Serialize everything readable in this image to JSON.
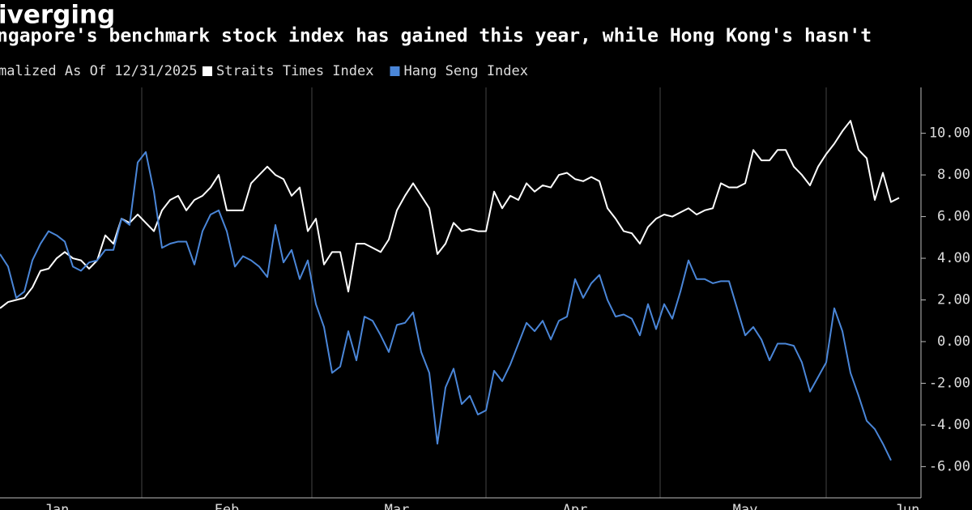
{
  "chart_data": {
    "type": "line",
    "title": "iverging",
    "subtitle": "ngapore's benchmark stock index has gained this year, while Hong Kong's hasn't",
    "legend_title": "malized As Of 12/31/2025",
    "categories": [
      null,
      null,
      null,
      null,
      null,
      null,
      null,
      "Jan",
      null,
      null,
      null,
      null,
      null,
      null,
      null,
      null,
      null,
      null,
      null,
      null,
      null,
      null,
      null,
      null,
      null,
      null,
      null,
      null,
      "Feb",
      null,
      null,
      null,
      null,
      null,
      null,
      null,
      null,
      null,
      null,
      null,
      null,
      null,
      null,
      null,
      null,
      null,
      null,
      null,
      null,
      "Mar",
      null,
      null,
      null,
      null,
      null,
      null,
      null,
      null,
      null,
      null,
      null,
      null,
      null,
      null,
      null,
      null,
      null,
      null,
      null,
      null,
      null,
      "Apr",
      null,
      null,
      null,
      null,
      null,
      null,
      null,
      null,
      null,
      null,
      null,
      null,
      null,
      null,
      null,
      null,
      null,
      null,
      null,
      null,
      "May",
      null,
      null,
      null,
      null,
      null,
      null,
      null,
      null,
      null,
      null,
      null,
      null,
      null,
      null,
      null,
      null,
      null,
      null,
      null,
      "Jun"
    ],
    "series": [
      {
        "name": "Straits Times Index",
        "color": "#ffffff",
        "values": [
          1.6,
          1.9,
          2.0,
          2.1,
          2.6,
          3.4,
          3.5,
          4.0,
          4.3,
          4.0,
          3.9,
          3.5,
          3.9,
          5.1,
          4.7,
          5.9,
          5.7,
          6.1,
          5.7,
          5.3,
          6.3,
          6.8,
          7.0,
          6.3,
          6.8,
          7.0,
          7.4,
          8.0,
          6.3,
          6.3,
          6.3,
          7.6,
          8.0,
          8.4,
          8.0,
          7.8,
          7.0,
          7.4,
          5.3,
          5.9,
          3.7,
          4.3,
          4.3,
          2.4,
          4.7,
          4.7,
          4.5,
          4.3,
          4.9,
          6.3,
          7.0,
          7.6,
          7.0,
          6.4,
          4.2,
          4.7,
          5.7,
          5.3,
          5.4,
          5.3,
          5.3,
          7.2,
          6.4,
          7.0,
          6.8,
          7.6,
          7.2,
          7.5,
          7.4,
          8.0,
          8.1,
          7.8,
          7.7,
          7.9,
          7.7,
          6.4,
          5.9,
          5.3,
          5.2,
          4.7,
          5.5,
          5.9,
          6.1,
          6.0,
          6.2,
          6.4,
          6.1,
          6.3,
          6.4,
          7.6,
          7.4,
          7.4,
          7.6,
          9.2,
          8.7,
          8.7,
          9.2,
          9.2,
          8.4,
          8.0,
          7.5,
          8.4,
          9.0,
          9.5,
          10.1,
          10.6,
          9.2,
          8.8,
          6.8,
          8.1,
          6.7,
          6.9,
          null
        ]
      },
      {
        "name": "Hang Seng Index",
        "color": "#4a86d8",
        "values": [
          4.2,
          3.6,
          2.1,
          2.4,
          3.9,
          4.7,
          5.3,
          5.1,
          4.8,
          3.6,
          3.4,
          3.8,
          3.9,
          4.4,
          4.4,
          5.9,
          5.6,
          8.6,
          9.1,
          7.2,
          4.5,
          4.7,
          4.8,
          4.8,
          3.7,
          5.3,
          6.1,
          6.3,
          5.3,
          3.6,
          4.1,
          3.9,
          3.6,
          3.1,
          5.6,
          3.8,
          4.4,
          3.0,
          3.9,
          1.8,
          0.7,
          -1.5,
          -1.2,
          0.5,
          -0.9,
          1.2,
          1.0,
          0.3,
          -0.5,
          0.8,
          0.9,
          1.4,
          -0.5,
          -1.5,
          -4.9,
          -2.2,
          -1.3,
          -3.0,
          -2.6,
          -3.5,
          -3.3,
          -1.4,
          -1.9,
          -1.1,
          -0.1,
          0.9,
          0.5,
          1.0,
          0.1,
          1.0,
          1.2,
          3.0,
          2.1,
          2.8,
          3.2,
          2.0,
          1.2,
          1.3,
          1.1,
          0.3,
          1.8,
          0.6,
          1.8,
          1.1,
          2.4,
          3.9,
          3.0,
          3.0,
          2.8,
          2.9,
          2.9,
          1.6,
          0.3,
          0.7,
          0.1,
          -0.9,
          -0.1,
          -0.1,
          -0.2,
          -1.0,
          -2.4,
          -1.7,
          -1.0,
          1.6,
          0.5,
          -1.5,
          -2.6,
          -3.8,
          -4.2,
          -4.9,
          -5.7,
          null,
          null
        ]
      }
    ],
    "ylim": [
      -7.5,
      12.2
    ],
    "yticks": [
      {
        "value": -6,
        "label": "-6.00"
      },
      {
        "value": -4,
        "label": "-4.00"
      },
      {
        "value": -2,
        "label": "-2.00"
      },
      {
        "value": 0,
        "label": "0.00"
      },
      {
        "value": 2,
        "label": "2.00"
      },
      {
        "value": 4,
        "label": "4.00"
      },
      {
        "value": 6,
        "label": "6.00"
      },
      {
        "value": 8,
        "label": "8.00"
      },
      {
        "value": 10,
        "label": "10.00"
      }
    ],
    "grid": false
  }
}
